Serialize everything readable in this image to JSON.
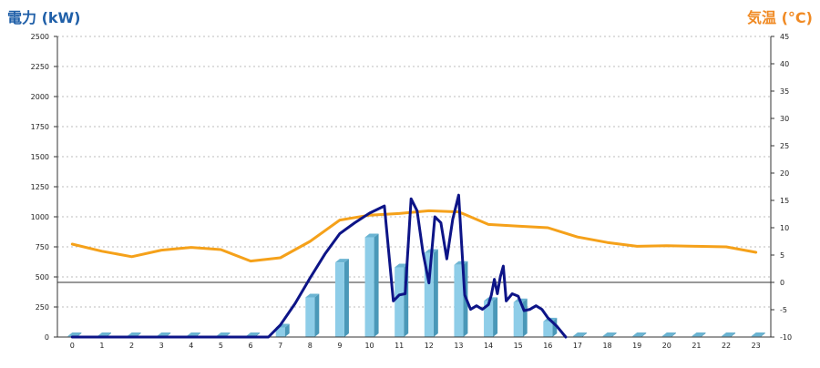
{
  "chart_data": {
    "type": "bar",
    "left_axis_label": "電力 (kW)",
    "right_axis_label": "気温 (°C)",
    "x_ticks": [
      "0",
      "1",
      "2",
      "3",
      "4",
      "5",
      "6",
      "7",
      "8",
      "9",
      "10",
      "11",
      "12",
      "13",
      "14",
      "15",
      "16",
      "17",
      "18",
      "19",
      "20",
      "21",
      "22",
      "23"
    ],
    "ylim_left": [
      0,
      2500
    ],
    "yticks_left": [
      "0",
      "250",
      "500",
      "750",
      "1000",
      "1250",
      "1500",
      "1750",
      "2000",
      "2250",
      "2500"
    ],
    "ylim_right": [
      -10,
      45
    ],
    "yticks_right": [
      "-10",
      "-5",
      "0",
      "5",
      "10",
      "15",
      "20",
      "25",
      "30",
      "35",
      "40",
      "45"
    ],
    "grid": true,
    "colors": {
      "bar_face": "#8ecde8",
      "bar_side": "#4a98b8",
      "bar_top": "#6bb4d2",
      "power_line": "#0d1487",
      "temperature_line": "#f5a11a",
      "left_label": "#1f5fa8",
      "right_label": "#f08a24"
    },
    "bars": {
      "x": [
        0,
        1,
        2,
        3,
        4,
        5,
        6,
        7,
        8,
        9,
        10,
        11,
        12,
        13,
        14,
        15,
        16,
        17,
        18,
        19,
        20,
        21,
        22,
        23
      ],
      "values": [
        0,
        0,
        0,
        0,
        0,
        0,
        0,
        80,
        330,
        620,
        830,
        580,
        700,
        600,
        300,
        290,
        130,
        0,
        0,
        0,
        0,
        0,
        0,
        0
      ]
    },
    "power_line": {
      "x": [
        0,
        6,
        6.6,
        7,
        7.5,
        8,
        8.5,
        9,
        9.5,
        10,
        10.5,
        10.8,
        11,
        11.2,
        11.4,
        11.6,
        11.8,
        12,
        12.2,
        12.4,
        12.6,
        12.8,
        13,
        13.2,
        13.4,
        13.6,
        13.8,
        14,
        14.1,
        14.2,
        14.3,
        14.4,
        14.5,
        14.6,
        14.8,
        15,
        15.2,
        15.4,
        15.6,
        15.8,
        16,
        16.3,
        16.6
      ],
      "values": [
        0,
        0,
        0,
        100,
        280,
        490,
        690,
        860,
        950,
        1030,
        1090,
        300,
        350,
        360,
        1150,
        1050,
        700,
        450,
        1000,
        950,
        650,
        980,
        1180,
        350,
        230,
        260,
        230,
        270,
        350,
        480,
        360,
        500,
        590,
        300,
        360,
        340,
        220,
        230,
        260,
        230,
        160,
        90,
        0
      ]
    },
    "temperature_line": {
      "x": [
        0,
        1,
        2,
        3,
        4,
        5,
        6,
        7,
        8,
        9,
        10,
        11,
        12,
        13,
        14,
        15,
        16,
        17,
        18,
        19,
        20,
        21,
        22,
        23
      ],
      "values": [
        7,
        5.7,
        4.7,
        5.9,
        6.4,
        6,
        3.9,
        4.5,
        7.5,
        11.4,
        12.3,
        12.6,
        13.1,
        12.9,
        10.6,
        10.3,
        10,
        8.3,
        7.3,
        6.6,
        6.7,
        6.6,
        6.5,
        5.5
      ]
    }
  }
}
